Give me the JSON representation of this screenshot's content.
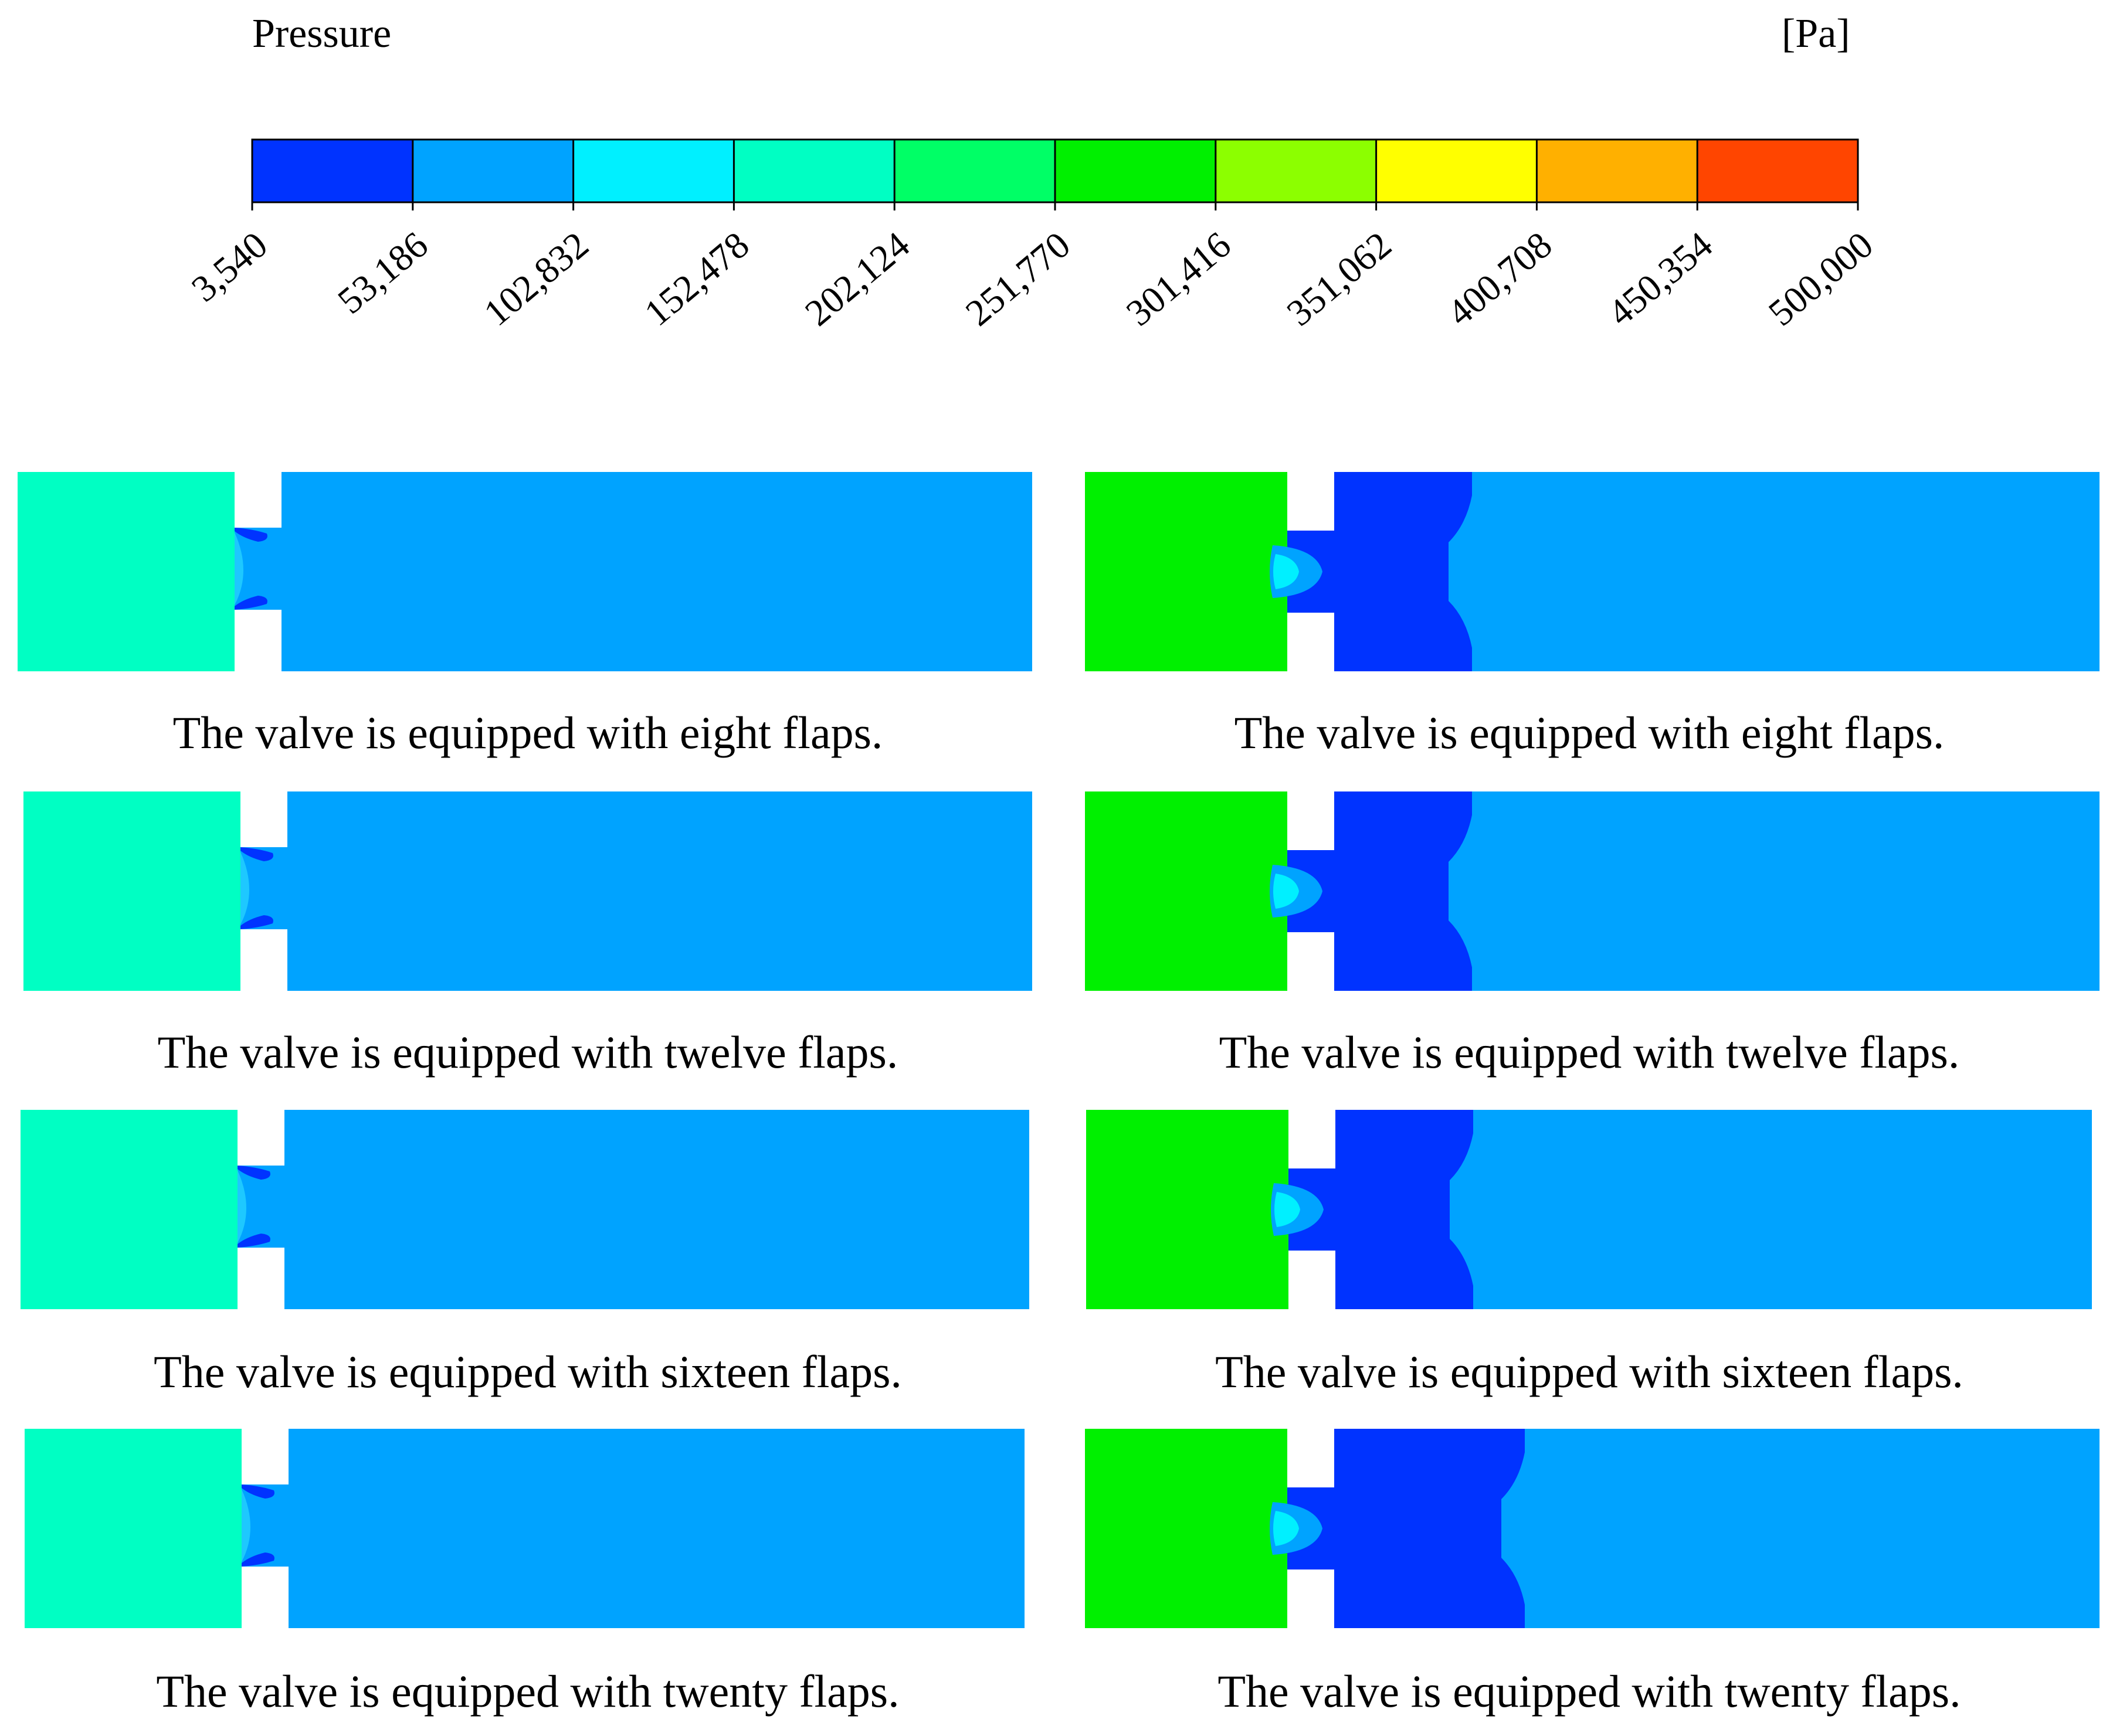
{
  "legend": {
    "title": "Pressure",
    "unit": "[Pa]",
    "tick_labels": [
      "3,540",
      "53,186",
      "102,832",
      "152,478",
      "202,124",
      "251,770",
      "301,416",
      "351,062",
      "400,708",
      "450,354",
      "500,000"
    ],
    "colors": [
      "#0033ff",
      "#00a3ff",
      "#00f0ff",
      "#00ffc3",
      "#00ff66",
      "#00f000",
      "#8cff00",
      "#ffff00",
      "#ffb000",
      "#ff4500"
    ]
  },
  "colors": {
    "inlet_left": "#00ffc3",
    "inlet_right": "#00f000",
    "outlet": "#00a3ff",
    "low": "#0033ff",
    "mid_light": "#1ec8ff"
  },
  "panels": [
    {
      "caption": "The valve is equipped with eight flaps."
    },
    {
      "caption": "The valve is equipped with eight flaps."
    },
    {
      "caption": "The valve is equipped with twelve flaps."
    },
    {
      "caption": "The valve is equipped with twelve flaps."
    },
    {
      "caption": "The valve is equipped with sixteen flaps."
    },
    {
      "caption": "The valve is equipped with sixteen flaps."
    },
    {
      "caption": "The valve is equipped with twenty flaps."
    },
    {
      "caption": "The valve is equipped with twenty flaps."
    }
  ]
}
